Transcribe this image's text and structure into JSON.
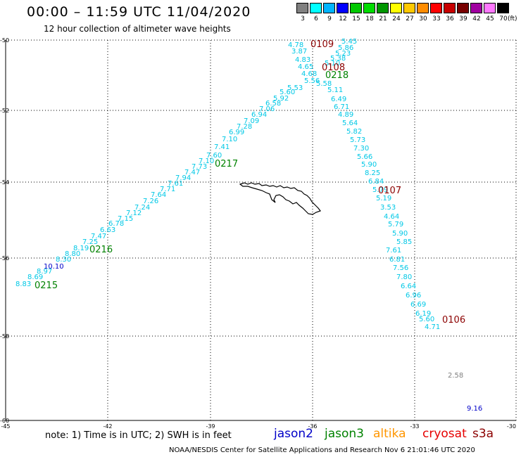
{
  "header": {
    "title": "00:00 – 11:59 UTC 11/04/2020",
    "subtitle": "12 hour collection of altimeter wave heights"
  },
  "legend": {
    "colors": [
      "#808080",
      "#00ffff",
      "#00b4ff",
      "#0000ff",
      "#00c800",
      "#00dc00",
      "#009600",
      "#ffff00",
      "#ffc800",
      "#ff8c00",
      "#ff0000",
      "#c80000",
      "#780000",
      "#a000a0",
      "#ff78ff",
      "#000000"
    ],
    "labels": [
      "3",
      "6",
      "9",
      "12",
      "15",
      "18",
      "21",
      "24",
      "27",
      "30",
      "33",
      "36",
      "39",
      "42",
      "45",
      "70"
    ],
    "unit": "(ft)"
  },
  "map": {
    "lat_labels": [
      "-50",
      "-52",
      "-54",
      "-56",
      "-58",
      "-60"
    ],
    "lon_labels": [
      "-45",
      "-42",
      "-39",
      "-36",
      "-33",
      "-30"
    ],
    "text_colors": {
      "cyan": "#00c8e6",
      "jason2": "#0000c8",
      "jason3": "#008200",
      "cryosat": "#8c0000",
      "gray": "#808080"
    },
    "track_a": [
      {
        "text": "4.78",
        "color": "cyan"
      },
      {
        "text": "3.87",
        "color": "cyan"
      },
      {
        "text": "4.83",
        "color": "cyan"
      },
      {
        "text": "4.65",
        "color": "cyan"
      },
      {
        "text": "4.68",
        "color": "cyan"
      },
      {
        "text": "5.56",
        "color": "cyan"
      },
      {
        "text": "5.53",
        "color": "cyan"
      },
      {
        "text": "5.60",
        "color": "cyan"
      },
      {
        "text": "5.92",
        "color": "cyan"
      },
      {
        "text": "6.58",
        "color": "cyan"
      },
      {
        "text": "7.06",
        "color": "cyan"
      },
      {
        "text": "6.94",
        "color": "cyan"
      },
      {
        "text": "7.09",
        "color": "cyan"
      },
      {
        "text": "7.28",
        "color": "cyan"
      },
      {
        "text": "6.99",
        "color": "cyan"
      },
      {
        "text": "7.10",
        "color": "cyan"
      },
      {
        "text": "7.41",
        "color": "cyan"
      },
      {
        "text": "7.60",
        "color": "cyan"
      },
      {
        "text": "7.10",
        "color": "cyan"
      },
      {
        "text": "7.73",
        "color": "cyan"
      },
      {
        "text": "7.47",
        "color": "cyan"
      },
      {
        "text": "7.94",
        "color": "cyan"
      },
      {
        "text": "7.61",
        "color": "cyan"
      },
      {
        "text": "7.71",
        "color": "cyan"
      },
      {
        "text": "7.64",
        "color": "cyan"
      },
      {
        "text": "7.26",
        "color": "cyan"
      },
      {
        "text": "7.24",
        "color": "cyan"
      },
      {
        "text": "7.12",
        "color": "cyan"
      },
      {
        "text": "7.15",
        "color": "cyan"
      },
      {
        "text": "6.78",
        "color": "cyan"
      },
      {
        "text": "6.63",
        "color": "cyan"
      },
      {
        "text": "7.47",
        "color": "cyan"
      },
      {
        "text": "7.25",
        "color": "cyan"
      },
      {
        "text": "8.19",
        "color": "cyan"
      },
      {
        "text": "8.80",
        "color": "cyan"
      },
      {
        "text": "8.30",
        "color": "cyan"
      },
      {
        "text": "10.10",
        "color": "jason2"
      },
      {
        "text": "8.97",
        "color": "cyan"
      },
      {
        "text": "8.69",
        "color": "cyan"
      },
      {
        "text": "8.83",
        "color": "cyan"
      }
    ],
    "track_b": [
      {
        "text": "5.45",
        "color": "cyan"
      },
      {
        "text": "5.86",
        "color": "cyan"
      },
      {
        "text": "5.23",
        "color": "cyan"
      },
      {
        "text": "5.38",
        "color": "cyan"
      },
      {
        "text": "5.10",
        "color": "cyan"
      },
      {
        "text": "5.58",
        "color": "cyan"
      },
      {
        "text": "5.11",
        "color": "cyan"
      },
      {
        "text": "6.49",
        "color": "cyan"
      },
      {
        "text": "6.71",
        "color": "cyan"
      },
      {
        "text": "4.89",
        "color": "cyan"
      },
      {
        "text": "5.64",
        "color": "cyan"
      },
      {
        "text": "5.82",
        "color": "cyan"
      },
      {
        "text": "5.73",
        "color": "cyan"
      },
      {
        "text": "7.30",
        "color": "cyan"
      },
      {
        "text": "5.66",
        "color": "cyan"
      },
      {
        "text": "5.90",
        "color": "cyan"
      },
      {
        "text": "8.25",
        "color": "cyan"
      },
      {
        "text": "6.84",
        "color": "cyan"
      },
      {
        "text": "5.79",
        "color": "cyan"
      },
      {
        "text": "5.19",
        "color": "cyan"
      },
      {
        "text": "3.53",
        "color": "cyan"
      },
      {
        "text": "4.64",
        "color": "cyan"
      },
      {
        "text": "5.79",
        "color": "cyan"
      },
      {
        "text": "5.90",
        "color": "cyan"
      },
      {
        "text": "5.85",
        "color": "cyan"
      },
      {
        "text": "7.61",
        "color": "cyan"
      },
      {
        "text": "6.81",
        "color": "cyan"
      },
      {
        "text": "7.56",
        "color": "cyan"
      },
      {
        "text": "7.80",
        "color": "cyan"
      },
      {
        "text": "6.64",
        "color": "cyan"
      },
      {
        "text": "6.96",
        "color": "cyan"
      },
      {
        "text": "6.69",
        "color": "cyan"
      },
      {
        "text": "6.19",
        "color": "cyan"
      },
      {
        "text": "5.60",
        "color": "cyan"
      },
      {
        "text": "4.71",
        "color": "cyan"
      }
    ],
    "pass_labels": [
      {
        "text": "0109",
        "color": "cryosat"
      },
      {
        "text": "0108",
        "color": "cryosat"
      },
      {
        "text": "0218",
        "color": "jason3"
      },
      {
        "text": "0217",
        "color": "jason3"
      },
      {
        "text": "0107",
        "color": "cryosat"
      },
      {
        "text": "0216",
        "color": "jason3"
      },
      {
        "text": "0215",
        "color": "jason3"
      },
      {
        "text": "0106",
        "color": "cryosat"
      }
    ],
    "isolated_values": [
      {
        "text": "2.58",
        "color": "gray"
      },
      {
        "text": "9.16",
        "color": "jason2"
      }
    ]
  },
  "footer": {
    "note": "note: 1) Time is in UTC; 2) SWH is in feet",
    "satellites": [
      {
        "name": "jason2",
        "color": "#0000c8"
      },
      {
        "name": "jason3",
        "color": "#008200"
      },
      {
        "name": "altika",
        "color": "#ff9600"
      },
      {
        "name": "cryosat",
        "color": "#e60000"
      },
      {
        "name": "s3a",
        "color": "#8c0000"
      }
    ],
    "credit": "NOAA/NESDIS Center for Satellite Applications and Research    Nov  6 21:01:46 UTC 2020"
  }
}
